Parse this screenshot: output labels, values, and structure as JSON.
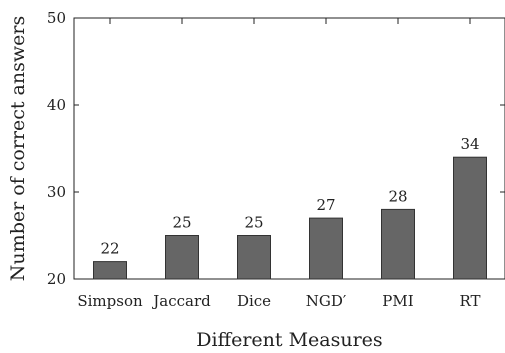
{
  "chart_data": {
    "type": "bar",
    "categories": [
      "Simpson",
      "Jaccard",
      "Dice",
      "NGD′",
      "PMI",
      "RT"
    ],
    "values": [
      22,
      25,
      25,
      27,
      28,
      34
    ],
    "data_labels": [
      "22",
      "25",
      "25",
      "27",
      "28",
      "34"
    ],
    "xlabel": "Different Measures",
    "ylabel": "Number of correct answers",
    "ylim": [
      20,
      50
    ],
    "yticks": [
      20,
      30,
      40,
      50
    ],
    "grid": false,
    "bar_color": "#666666",
    "bar_edge_color": "#333333"
  }
}
